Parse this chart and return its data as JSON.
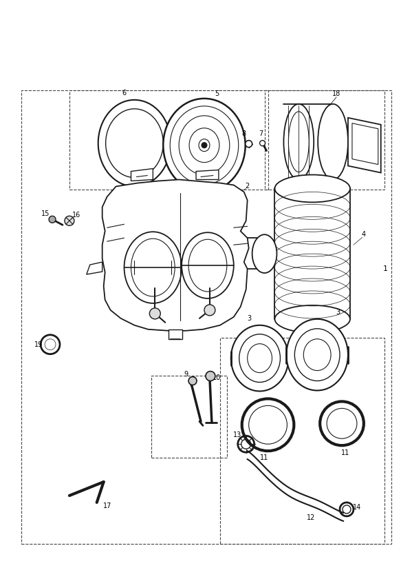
{
  "background_color": "#ffffff",
  "line_color": "#1a1a1a",
  "fig_width": 5.83,
  "fig_height": 8.24,
  "dpi": 100
}
